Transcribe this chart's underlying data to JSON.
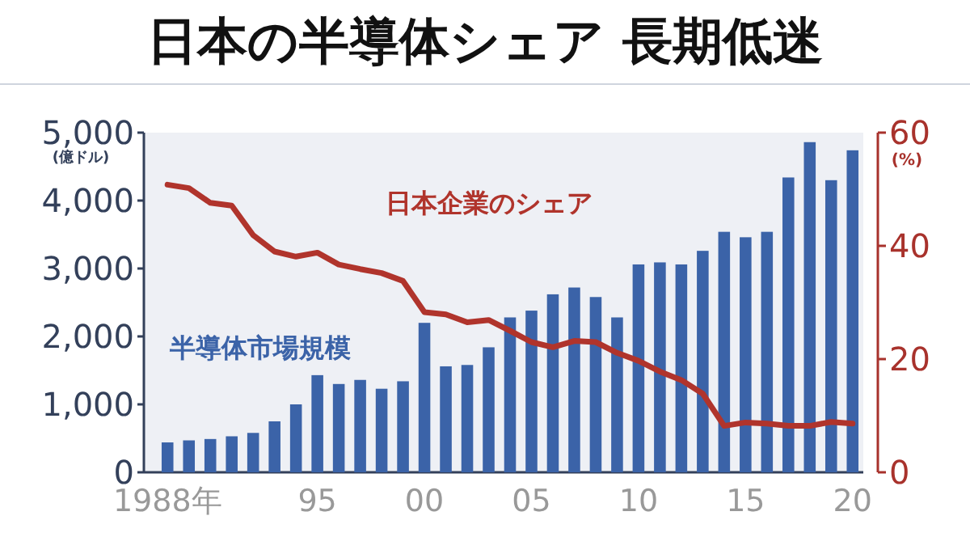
{
  "chart_data": {
    "type": "bar",
    "title": "日本の半導体シェア 長期低迷",
    "ylabel": "(億ドル)",
    "y2label": "(%)",
    "categories": [
      "1988年",
      null,
      null,
      null,
      null,
      null,
      null,
      "95",
      null,
      null,
      null,
      null,
      "00",
      null,
      null,
      null,
      null,
      "05",
      null,
      null,
      null,
      null,
      "10",
      null,
      null,
      null,
      null,
      "15",
      null,
      null,
      null,
      null,
      "20"
    ],
    "series": [
      {
        "name": "半導体市場規模",
        "color": "#3b63a8",
        "values": [
          440,
          470,
          490,
          530,
          580,
          750,
          1000,
          1430,
          1300,
          1360,
          1230,
          1340,
          2200,
          1560,
          1580,
          1840,
          2280,
          2380,
          2620,
          2720,
          2580,
          2280,
          3060,
          3090,
          3060,
          3260,
          3540,
          3460,
          3540,
          4340,
          4860,
          4300,
          4740
        ]
      },
      {
        "name": "日本企業のシェア",
        "type": "line",
        "axis": "y2",
        "color": "#b0342c",
        "values": [
          50.8,
          50.2,
          47.6,
          47.1,
          41.9,
          39,
          38.1,
          38.8,
          36.7,
          35.9,
          35.2,
          33.8,
          28.3,
          27.9,
          26.5,
          26.9,
          25,
          23,
          22.1,
          23.2,
          23,
          21.1,
          19.7,
          17.8,
          16.3,
          13.9,
          8.2,
          8.8,
          8.6,
          8.2,
          8.2,
          8.9,
          8.6
        ]
      }
    ],
    "ylim": [
      0,
      5000
    ],
    "yticks": [
      0,
      {
        "value": 1000,
        "label": "1,000"
      },
      {
        "value": 2000,
        "label": "2,000"
      },
      {
        "value": 3000,
        "label": "3,000"
      },
      {
        "value": 4000,
        "label": "4,000"
      },
      {
        "value": 5000,
        "label": "5,000"
      }
    ],
    "y2lim": [
      0,
      60
    ],
    "y2ticks": [
      0,
      20,
      40,
      60
    ],
    "grid": false,
    "legend": false
  }
}
